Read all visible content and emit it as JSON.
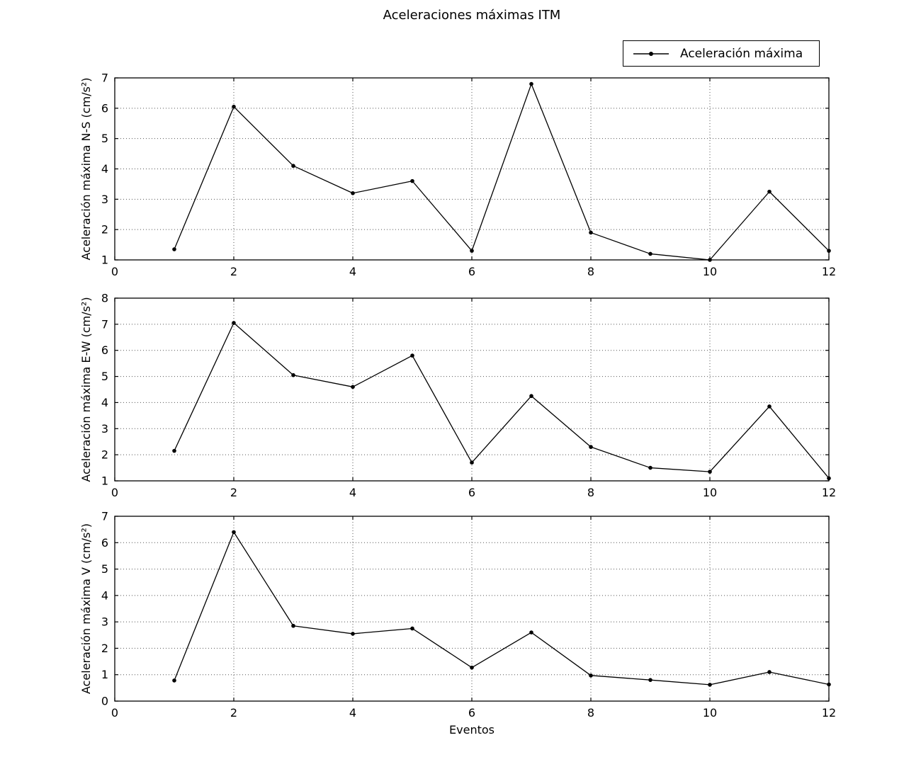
{
  "figure": {
    "title": "Aceleraciones máximas ITM",
    "legend": {
      "label": "Aceleración máxima",
      "marker": "line-dot"
    },
    "colors": {
      "line": "#000000",
      "grid": "#555555",
      "background": "#ffffff",
      "text": "#000000"
    }
  },
  "chart_data": [
    {
      "type": "line",
      "ylabel": "Aceleración máxima N-S (cm/s²)",
      "xlabel": "",
      "x": [
        1,
        2,
        3,
        4,
        5,
        6,
        7,
        8,
        9,
        10,
        11,
        12
      ],
      "series": [
        {
          "name": "Aceleración máxima",
          "values": [
            1.35,
            6.05,
            4.1,
            3.2,
            3.6,
            1.3,
            6.8,
            1.9,
            1.2,
            1.0,
            3.25,
            1.3
          ]
        }
      ],
      "xlim": [
        0,
        12
      ],
      "ylim": [
        1,
        7
      ],
      "xticks": [
        0,
        2,
        4,
        6,
        8,
        10,
        12
      ],
      "yticks": [
        1,
        2,
        3,
        4,
        5,
        6,
        7
      ],
      "grid": true,
      "legend_position": "upper-right-outside"
    },
    {
      "type": "line",
      "ylabel": "Aceleración máxima E-W (cm/s²)",
      "xlabel": "",
      "x": [
        1,
        2,
        3,
        4,
        5,
        6,
        7,
        8,
        9,
        10,
        11,
        12
      ],
      "series": [
        {
          "name": "Aceleración máxima",
          "values": [
            2.15,
            7.05,
            5.05,
            4.6,
            5.8,
            1.7,
            4.25,
            2.3,
            1.5,
            1.35,
            3.85,
            1.1
          ]
        }
      ],
      "xlim": [
        0,
        12
      ],
      "ylim": [
        1,
        8
      ],
      "xticks": [
        0,
        2,
        4,
        6,
        8,
        10,
        12
      ],
      "yticks": [
        1,
        2,
        3,
        4,
        5,
        6,
        7,
        8
      ],
      "grid": true,
      "legend_position": "none"
    },
    {
      "type": "line",
      "ylabel": "Aceleración máxima V (cm/s²)",
      "xlabel": "Eventos",
      "x": [
        1,
        2,
        3,
        4,
        5,
        6,
        7,
        8,
        9,
        10,
        11,
        12
      ],
      "series": [
        {
          "name": "Aceleración máxima",
          "values": [
            0.78,
            6.4,
            2.85,
            2.55,
            2.75,
            1.27,
            2.6,
            0.97,
            0.8,
            0.62,
            1.1,
            0.63
          ]
        }
      ],
      "xlim": [
        0,
        12
      ],
      "ylim": [
        0,
        7
      ],
      "xticks": [
        0,
        2,
        4,
        6,
        8,
        10,
        12
      ],
      "yticks": [
        0,
        1,
        2,
        3,
        4,
        5,
        6,
        7
      ],
      "grid": true,
      "legend_position": "none"
    }
  ]
}
